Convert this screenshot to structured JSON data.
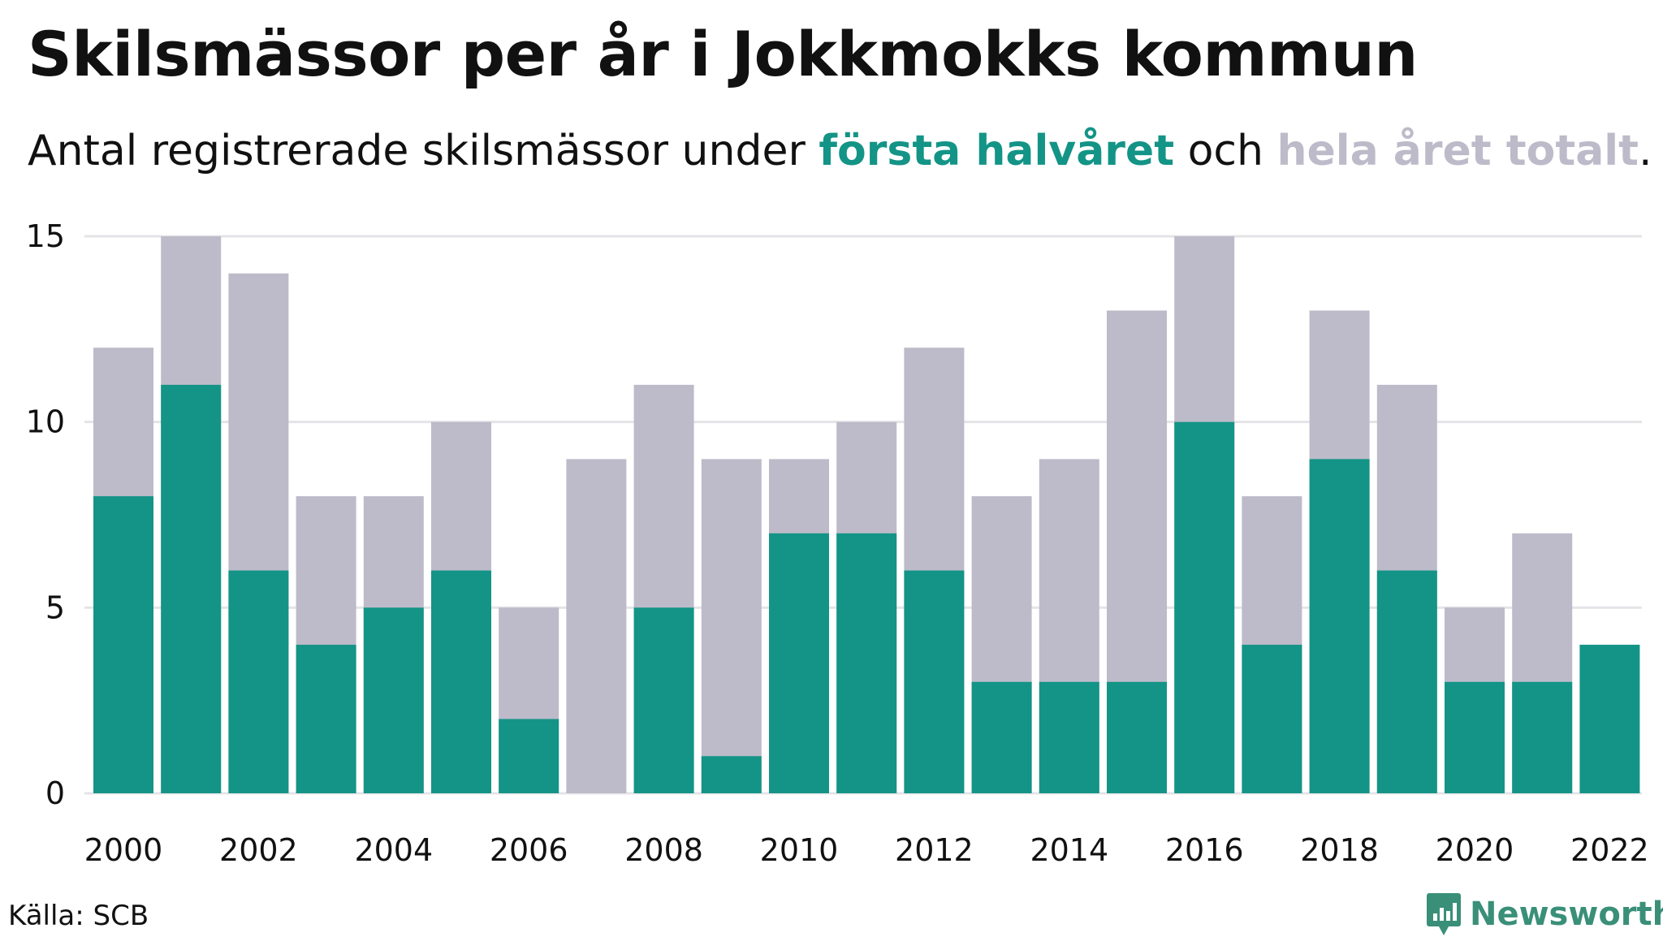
{
  "title": "Skilsmässor per år i Jokkmokks kommun",
  "subtitle": {
    "prefix": "Antal registrerade skilsmässor under ",
    "highlight1": "första halvåret",
    "middle": " och ",
    "highlight2": "hela året totalt",
    "suffix": "."
  },
  "source": "Källa: SCB",
  "brand": {
    "name": "Newsworthy",
    "icon": "newsworthy-logo-icon"
  },
  "colors": {
    "first_half": "#139486",
    "full_year": "#bdbbc9",
    "grid": "#e4e4e8"
  },
  "chart_data": {
    "type": "bar",
    "stacking": "overlay",
    "x": [
      2000,
      2001,
      2002,
      2003,
      2004,
      2005,
      2006,
      2007,
      2008,
      2009,
      2010,
      2011,
      2012,
      2013,
      2014,
      2015,
      2016,
      2017,
      2018,
      2019,
      2020,
      2021,
      2022
    ],
    "x_tick_labels": [
      "2000",
      "2002",
      "2004",
      "2006",
      "2008",
      "2010",
      "2012",
      "2014",
      "2016",
      "2018",
      "2020",
      "2022"
    ],
    "y_tick_labels": [
      "0",
      "5",
      "10",
      "15"
    ],
    "ylim": [
      0,
      15
    ],
    "grid": true,
    "series": [
      {
        "name": "hela året totalt",
        "values": [
          12,
          15,
          14,
          8,
          8,
          10,
          5,
          9,
          11,
          9,
          9,
          10,
          12,
          8,
          9,
          13,
          15,
          8,
          13,
          11,
          5,
          7,
          null
        ]
      },
      {
        "name": "första halvåret",
        "values": [
          8,
          11,
          6,
          4,
          5,
          6,
          2,
          0,
          5,
          1,
          7,
          7,
          6,
          3,
          3,
          3,
          10,
          4,
          9,
          6,
          3,
          3,
          4
        ]
      }
    ]
  }
}
